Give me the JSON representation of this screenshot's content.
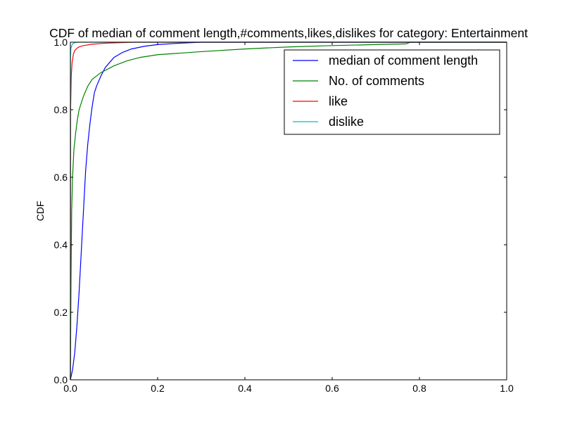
{
  "chart_data": {
    "type": "line",
    "title": "CDF of median of comment length,#comments,likes,dislikes for category: Entertainment",
    "xlabel": "",
    "ylabel": "CDF",
    "xlim": [
      0.0,
      1.0
    ],
    "ylim": [
      0.0,
      1.0
    ],
    "x_ticks": [
      0.0,
      0.2,
      0.4,
      0.6,
      0.8,
      1.0
    ],
    "x_tick_labels": [
      "0.0",
      "0.2",
      "0.4",
      "0.6",
      "0.8",
      "1.0"
    ],
    "y_ticks": [
      0.0,
      0.2,
      0.4,
      0.6,
      0.8,
      1.0
    ],
    "y_tick_labels": [
      "0.0",
      "0.2",
      "0.4",
      "0.6",
      "0.8",
      "1.0"
    ],
    "grid": false,
    "legend_placement": "top-right",
    "series": [
      {
        "name": "median of comment length",
        "color": "#0000ff",
        "points": [
          [
            0.0,
            0.0
          ],
          [
            0.005,
            0.03
          ],
          [
            0.01,
            0.08
          ],
          [
            0.015,
            0.16
          ],
          [
            0.02,
            0.26
          ],
          [
            0.025,
            0.38
          ],
          [
            0.03,
            0.5
          ],
          [
            0.035,
            0.62
          ],
          [
            0.04,
            0.7
          ],
          [
            0.045,
            0.76
          ],
          [
            0.05,
            0.81
          ],
          [
            0.055,
            0.85
          ],
          [
            0.06,
            0.87
          ],
          [
            0.07,
            0.9
          ],
          [
            0.08,
            0.925
          ],
          [
            0.09,
            0.94
          ],
          [
            0.1,
            0.955
          ],
          [
            0.12,
            0.97
          ],
          [
            0.14,
            0.98
          ],
          [
            0.17,
            0.988
          ],
          [
            0.2,
            0.993
          ],
          [
            0.25,
            0.997
          ],
          [
            0.3,
            1.0
          ],
          [
            1.0,
            1.0
          ]
        ]
      },
      {
        "name": "No. of comments",
        "color": "#008000",
        "points": [
          [
            0.0,
            0.0
          ],
          [
            0.0015,
            0.3
          ],
          [
            0.003,
            0.5
          ],
          [
            0.005,
            0.6
          ],
          [
            0.008,
            0.68
          ],
          [
            0.012,
            0.73
          ],
          [
            0.016,
            0.77
          ],
          [
            0.02,
            0.8
          ],
          [
            0.03,
            0.84
          ],
          [
            0.04,
            0.87
          ],
          [
            0.05,
            0.89
          ],
          [
            0.07,
            0.91
          ],
          [
            0.1,
            0.93
          ],
          [
            0.13,
            0.945
          ],
          [
            0.16,
            0.955
          ],
          [
            0.2,
            0.963
          ],
          [
            0.3,
            0.972
          ],
          [
            0.4,
            0.98
          ],
          [
            0.5,
            0.986
          ],
          [
            0.6,
            0.99
          ],
          [
            0.7,
            0.993
          ],
          [
            0.77,
            0.995
          ],
          [
            0.775,
            0.998
          ],
          [
            0.78,
            1.0
          ],
          [
            1.0,
            1.0
          ]
        ]
      },
      {
        "name": "like",
        "color": "#ff0000",
        "points": [
          [
            0.0,
            0.0
          ],
          [
            0.0005,
            0.8
          ],
          [
            0.002,
            0.9
          ],
          [
            0.004,
            0.94
          ],
          [
            0.007,
            0.965
          ],
          [
            0.01,
            0.975
          ],
          [
            0.015,
            0.982
          ],
          [
            0.02,
            0.986
          ],
          [
            0.03,
            0.99
          ],
          [
            0.05,
            0.994
          ],
          [
            0.08,
            0.997
          ],
          [
            0.12,
            0.999
          ],
          [
            0.15,
            1.0
          ],
          [
            1.0,
            1.0
          ]
        ]
      },
      {
        "name": "dislike",
        "color": "#00bfbf",
        "points": [
          [
            0.0,
            0.0
          ],
          [
            0.0003,
            0.95
          ],
          [
            0.001,
            0.98
          ],
          [
            0.003,
            0.99
          ],
          [
            0.006,
            0.996
          ],
          [
            0.01,
            0.999
          ],
          [
            0.015,
            1.0
          ],
          [
            1.0,
            1.0
          ]
        ]
      }
    ]
  }
}
